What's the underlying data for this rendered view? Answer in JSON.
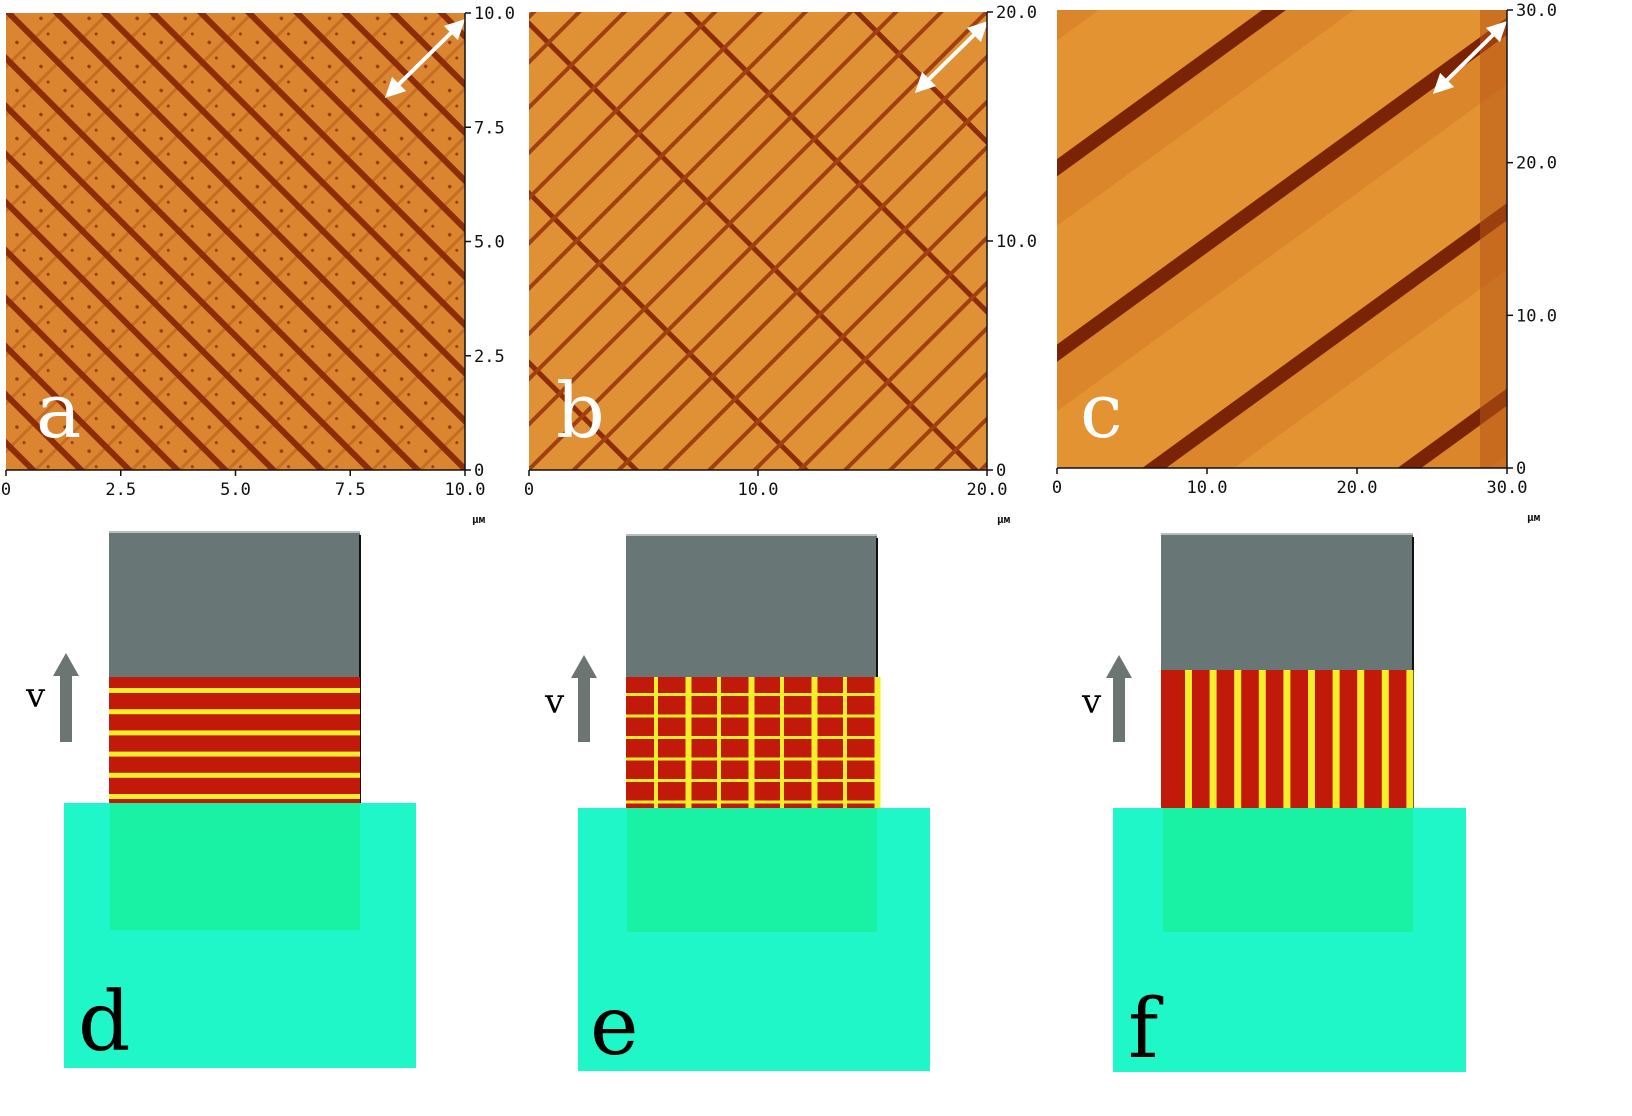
{
  "colors": {
    "afm_background": "#d9822a",
    "afm_stripe": "#8a2b06",
    "substrate": "#1ff7c8",
    "substrate_overlap": "#18ef9a",
    "head_gray": "#687775",
    "film_red": "#c21a0a",
    "film_yellow": "#f6ee2a",
    "arrow_gray": "#6c7572"
  },
  "afm_panels": [
    {
      "label": "a",
      "unit": "μм",
      "x_ticks": [
        "0",
        "2.5",
        "5.0",
        "7.5",
        "10.0"
      ],
      "y_ticks": [
        "0",
        "2.5",
        "5.0",
        "7.5",
        "10.0"
      ],
      "range": [
        0,
        10
      ]
    },
    {
      "label": "b",
      "unit": "μм",
      "x_ticks": [
        "0",
        "10.0",
        "20.0"
      ],
      "y_ticks": [
        "0",
        "10.0",
        "20.0"
      ],
      "range": [
        0,
        20
      ]
    },
    {
      "label": "c",
      "unit": "μм",
      "x_ticks": [
        "0",
        "10.0",
        "20.0",
        "30.0"
      ],
      "y_ticks": [
        "0",
        "10.0",
        "20.0",
        "30.0"
      ],
      "range": [
        0,
        30
      ]
    }
  ],
  "schematics": [
    {
      "label": "d",
      "velocity_label": "v",
      "pattern": "horizontal-stripes"
    },
    {
      "label": "e",
      "velocity_label": "v",
      "pattern": "grid"
    },
    {
      "label": "f",
      "velocity_label": "v",
      "pattern": "vertical-stripes"
    }
  ]
}
